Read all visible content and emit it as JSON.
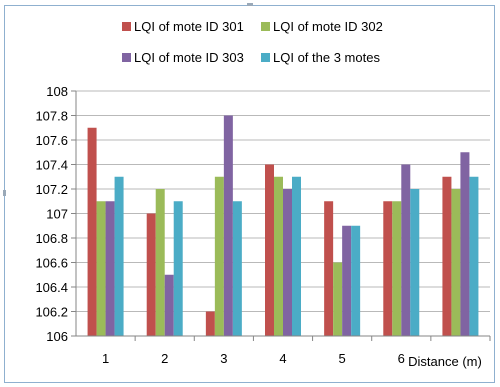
{
  "chart_data": {
    "type": "bar",
    "title": "",
    "xlabel": "Distance (m)",
    "ylabel": "",
    "ylim": [
      106,
      108
    ],
    "yticks": [
      "106",
      "106.2",
      "106.4",
      "106.6",
      "106.8",
      "107",
      "107.2",
      "107.4",
      "107.6",
      "107.8",
      "108"
    ],
    "categories": [
      "1",
      "2",
      "3",
      "4",
      "5",
      "6",
      ""
    ],
    "series": [
      {
        "name": "LQI of mote ID 301",
        "color": "#c0504d",
        "values": [
          107.7,
          107.0,
          106.2,
          107.4,
          107.1,
          107.1,
          107.3
        ]
      },
      {
        "name": "LQI of mote ID 302",
        "color": "#9bbb59",
        "values": [
          107.1,
          107.2,
          107.3,
          107.3,
          106.6,
          107.1,
          107.2
        ]
      },
      {
        "name": "LQI of mote ID 303",
        "color": "#8064a2",
        "values": [
          107.1,
          106.5,
          107.8,
          107.2,
          106.9,
          107.4,
          107.5
        ]
      },
      {
        "name": "LQI of the 3 motes",
        "color": "#4bacc6",
        "values": [
          107.3,
          107.1,
          107.1,
          107.3,
          106.9,
          107.2,
          107.3
        ]
      }
    ],
    "grid": true,
    "legend_position": "top"
  }
}
